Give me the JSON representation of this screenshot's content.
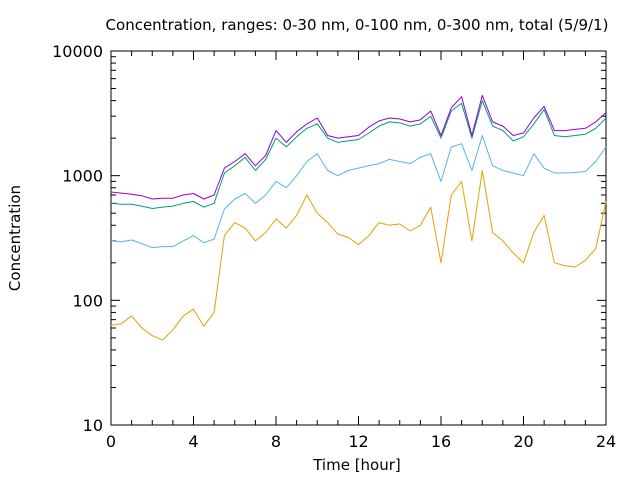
{
  "chart_data": {
    "type": "line",
    "title": "Concentration, ranges: 0-30 nm, 0-100 nm, 0-300 nm, total (5/9/1)",
    "xlabel": "Time [hour]",
    "ylabel": "Concentration",
    "xlim": [
      0,
      24
    ],
    "ylim": [
      10,
      10000
    ],
    "y_scale": "log",
    "grid": false,
    "x_ticks": [
      0,
      4,
      8,
      12,
      16,
      20,
      24
    ],
    "x_tick_labels": [
      "0",
      "4",
      "8",
      "12",
      "16",
      "20",
      "24"
    ],
    "y_ticks": [
      10,
      100,
      1000,
      10000
    ],
    "y_tick_labels": [
      "10",
      "100",
      "1000",
      "10000"
    ],
    "x": [
      0,
      0.5,
      1,
      1.5,
      2,
      2.5,
      3,
      3.5,
      4,
      4.5,
      5,
      5.5,
      6,
      6.5,
      7,
      7.5,
      8,
      8.5,
      9,
      9.5,
      10,
      10.5,
      11,
      11.5,
      12,
      12.5,
      13,
      13.5,
      14,
      14.5,
      15,
      15.5,
      16,
      16.5,
      17,
      17.5,
      18,
      18.5,
      19,
      19.5,
      20,
      20.5,
      21,
      21.5,
      22,
      22.5,
      23,
      23.5,
      24
    ],
    "series": [
      {
        "color": "#e69f00",
        "values": [
          63,
          65,
          75,
          60,
          52,
          48,
          58,
          75,
          85,
          62,
          80,
          330,
          420,
          380,
          300,
          350,
          450,
          380,
          480,
          700,
          500,
          420,
          340,
          320,
          280,
          330,
          420,
          400,
          410,
          360,
          400,
          560,
          200,
          700,
          900,
          300,
          1100,
          350,
          300,
          240,
          200,
          350,
          480,
          200,
          190,
          185,
          210,
          260,
          620
        ]
      },
      {
        "color": "#56b4e9",
        "values": [
          300,
          295,
          305,
          285,
          265,
          270,
          270,
          300,
          330,
          290,
          310,
          540,
          650,
          720,
          600,
          700,
          900,
          800,
          1000,
          1300,
          1500,
          1100,
          1000,
          1100,
          1150,
          1200,
          1250,
          1350,
          1300,
          1250,
          1400,
          1500,
          900,
          1700,
          1800,
          1100,
          2100,
          1200,
          1100,
          1050,
          1000,
          1500,
          1150,
          1050,
          1050,
          1060,
          1080,
          1300,
          1700
        ]
      },
      {
        "color": "#009e73",
        "values": [
          600,
          590,
          590,
          570,
          545,
          560,
          570,
          600,
          620,
          560,
          600,
          1050,
          1200,
          1400,
          1100,
          1350,
          2000,
          1700,
          2050,
          2400,
          2600,
          2000,
          1850,
          1900,
          1950,
          2200,
          2500,
          2700,
          2650,
          2500,
          2600,
          3000,
          2000,
          3300,
          3800,
          2000,
          4000,
          2500,
          2300,
          1900,
          2050,
          2600,
          3400,
          2100,
          2050,
          2100,
          2150,
          2400,
          2900
        ]
      },
      {
        "color": "#9400d3",
        "values": [
          740,
          725,
          710,
          690,
          650,
          660,
          660,
          700,
          720,
          650,
          700,
          1150,
          1300,
          1500,
          1200,
          1450,
          2300,
          1850,
          2250,
          2600,
          2900,
          2100,
          2000,
          2050,
          2100,
          2450,
          2750,
          2900,
          2850,
          2700,
          2800,
          3300,
          2100,
          3500,
          4300,
          2100,
          4400,
          2700,
          2500,
          2100,
          2200,
          2900,
          3600,
          2300,
          2300,
          2350,
          2400,
          2700,
          3200
        ]
      }
    ]
  }
}
